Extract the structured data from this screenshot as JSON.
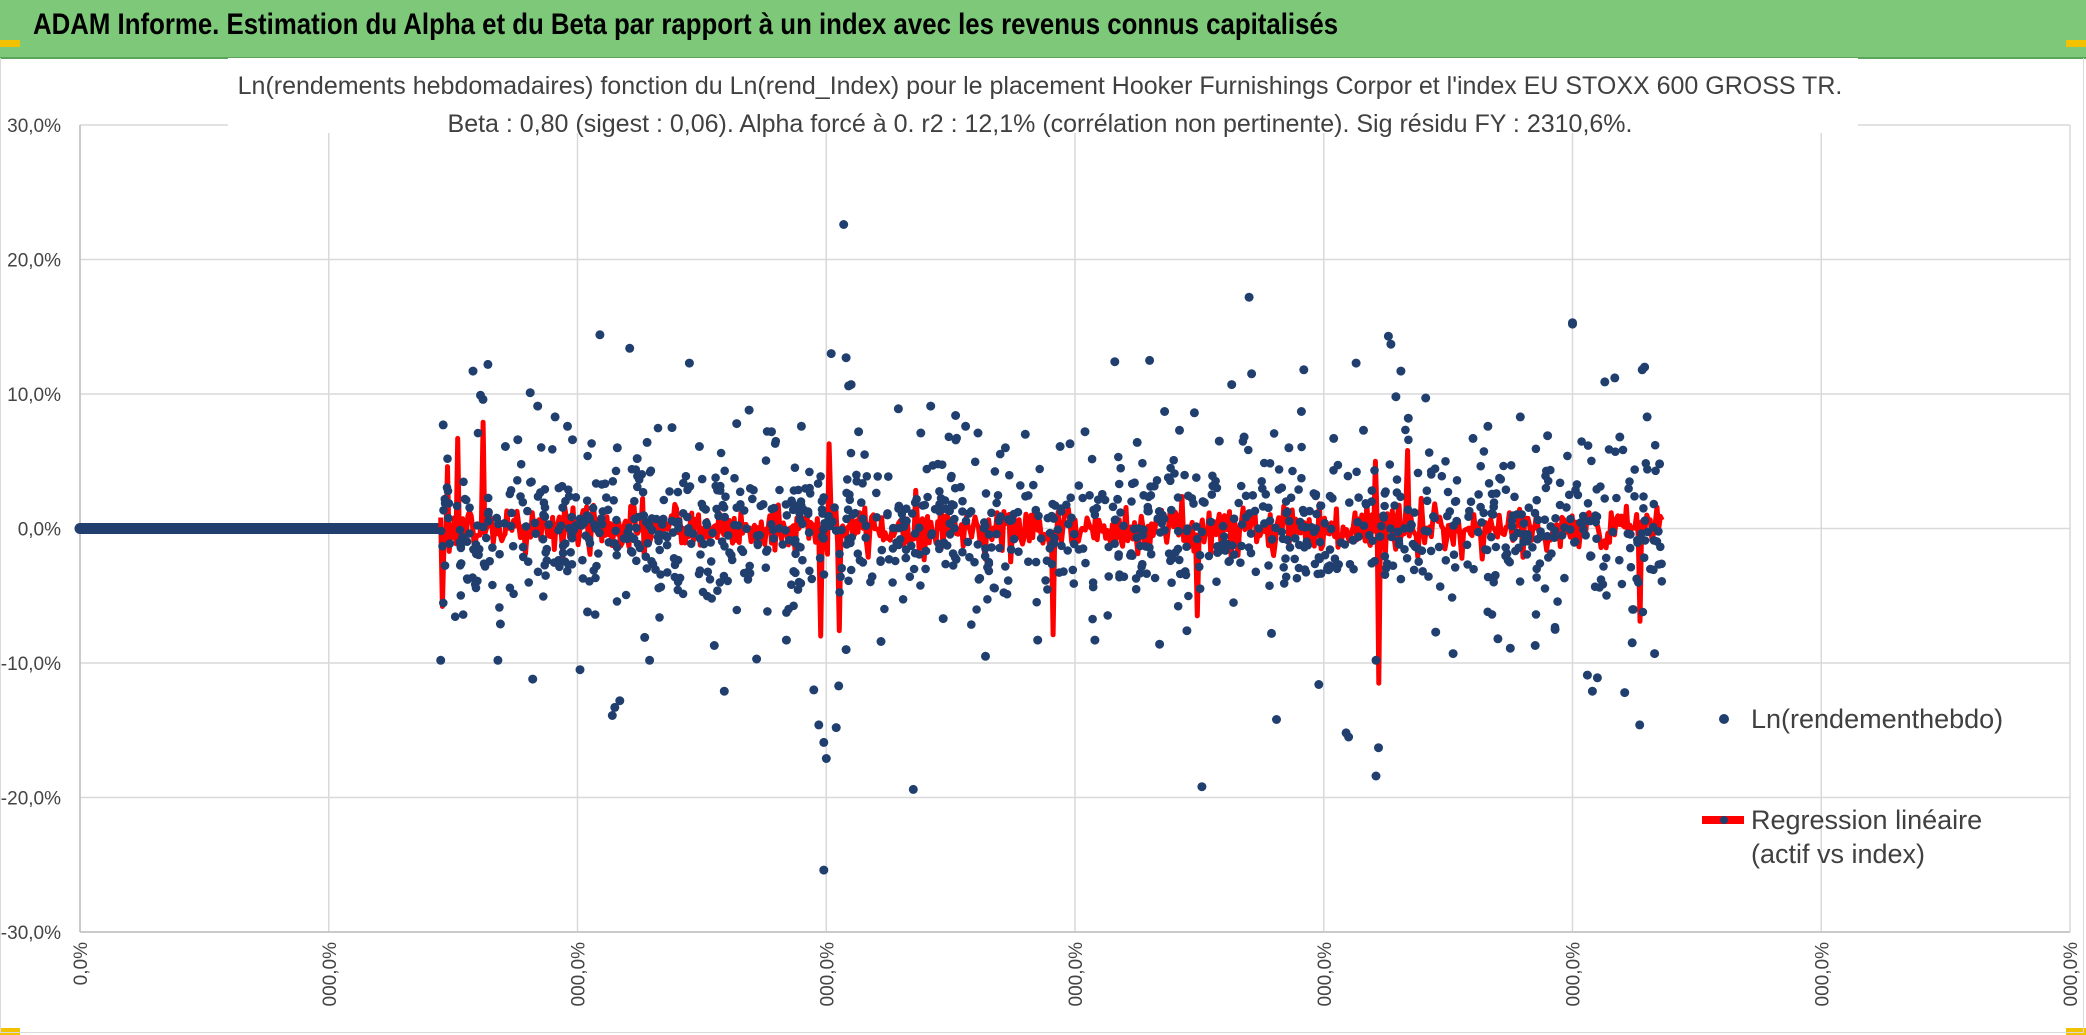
{
  "banner": {
    "title": "ADAM Informe. Estimation du Alpha et du Beta par rapport à un index avec les revenus connus capitalisés"
  },
  "colors": {
    "banner_bg": "#7ec87a",
    "points": "#203f6e",
    "regression": "#ff0000",
    "grid": "#d9d9d9",
    "corner_marks": "#f2c200"
  },
  "chart_data": {
    "type": "scatter",
    "title": "Ln(rendements hebdomadaires) fonction du Ln(rend_Index) pour le placement Hooker Furnishings Corpor et l'index EU STOXX 600 GROSS TR.",
    "subtitle": "Beta : 0,80 (sigest : 0,06). Alpha forcé à 0. r2 : 12,1% (corrélation non pertinente). Sig résidu FY : 2310,6%.",
    "ylim": [
      -0.3,
      0.3
    ],
    "y_ticks": [
      0.3,
      0.2,
      0.1,
      0.0,
      -0.1,
      -0.2,
      -0.3
    ],
    "y_tick_labels": [
      "30,0%",
      "20,0%",
      "10,0%",
      "0,0%",
      "-10,0%",
      "-20,0%",
      "-30,0%"
    ],
    "x_tick_labels": [
      "0,0%",
      "000,0%",
      "000,0%",
      "000,0%",
      "000,0%",
      "000,0%",
      "000,0%",
      "000,0%",
      "000,0%"
    ],
    "grid": true,
    "legend_position": "right",
    "series": [
      {
        "name": "Ln(rendementhebdo)",
        "type": "scatter",
        "color": "#203f6e",
        "zero_segment": {
          "x_start": 0.0,
          "x_end": 1.44,
          "y": 0.0
        },
        "points": [
          {
            "x": 1.45,
            "y": -0.098
          },
          {
            "x": 1.46,
            "y": 0.077
          },
          {
            "x": 1.58,
            "y": 0.117
          },
          {
            "x": 1.64,
            "y": 0.122
          },
          {
            "x": 1.61,
            "y": 0.099
          },
          {
            "x": 1.62,
            "y": 0.096
          },
          {
            "x": 1.71,
            "y": 0.061
          },
          {
            "x": 1.76,
            "y": 0.066
          },
          {
            "x": 1.69,
            "y": -0.071
          },
          {
            "x": 1.68,
            "y": -0.098
          },
          {
            "x": 1.81,
            "y": 0.101
          },
          {
            "x": 1.84,
            "y": 0.091
          },
          {
            "x": 1.82,
            "y": -0.112
          },
          {
            "x": 1.91,
            "y": 0.083
          },
          {
            "x": 1.96,
            "y": 0.076
          },
          {
            "x": 1.98,
            "y": 0.066
          },
          {
            "x": 2.01,
            "y": -0.105
          },
          {
            "x": 2.04,
            "y": -0.062
          },
          {
            "x": 2.09,
            "y": 0.144
          },
          {
            "x": 2.14,
            "y": -0.139
          },
          {
            "x": 2.15,
            "y": -0.133
          },
          {
            "x": 2.17,
            "y": -0.128
          },
          {
            "x": 2.21,
            "y": 0.134
          },
          {
            "x": 2.16,
            "y": 0.06
          },
          {
            "x": 2.24,
            "y": 0.052
          },
          {
            "x": 2.27,
            "y": -0.081
          },
          {
            "x": 2.29,
            "y": -0.098
          },
          {
            "x": 2.28,
            "y": 0.064
          },
          {
            "x": 2.38,
            "y": 0.075
          },
          {
            "x": 2.45,
            "y": 0.123
          },
          {
            "x": 2.49,
            "y": 0.061
          },
          {
            "x": 2.55,
            "y": -0.087
          },
          {
            "x": 2.59,
            "y": -0.121
          },
          {
            "x": 2.64,
            "y": 0.078
          },
          {
            "x": 2.69,
            "y": 0.088
          },
          {
            "x": 2.72,
            "y": -0.097
          },
          {
            "x": 2.78,
            "y": 0.072
          },
          {
            "x": 2.84,
            "y": -0.083
          },
          {
            "x": 2.9,
            "y": 0.076
          },
          {
            "x": 2.95,
            "y": -0.12
          },
          {
            "x": 2.97,
            "y": -0.146
          },
          {
            "x": 2.99,
            "y": -0.159
          },
          {
            "x": 3.0,
            "y": -0.171
          },
          {
            "x": 3.02,
            "y": 0.13
          },
          {
            "x": 3.04,
            "y": -0.148
          },
          {
            "x": 3.05,
            "y": -0.117
          },
          {
            "x": 3.07,
            "y": 0.226
          },
          {
            "x": 3.08,
            "y": 0.127
          },
          {
            "x": 3.09,
            "y": 0.106
          },
          {
            "x": 3.1,
            "y": 0.107
          },
          {
            "x": 2.99,
            "y": -0.254
          },
          {
            "x": 3.08,
            "y": -0.09
          },
          {
            "x": 3.13,
            "y": 0.072
          },
          {
            "x": 3.22,
            "y": -0.084
          },
          {
            "x": 3.29,
            "y": 0.089
          },
          {
            "x": 3.35,
            "y": -0.194
          },
          {
            "x": 3.38,
            "y": 0.071
          },
          {
            "x": 3.42,
            "y": 0.091
          },
          {
            "x": 3.47,
            "y": -0.067
          },
          {
            "x": 3.52,
            "y": 0.084
          },
          {
            "x": 3.56,
            "y": 0.076
          },
          {
            "x": 3.61,
            "y": 0.071
          },
          {
            "x": 3.64,
            "y": -0.095
          },
          {
            "x": 3.72,
            "y": 0.06
          },
          {
            "x": 3.8,
            "y": 0.07
          },
          {
            "x": 3.85,
            "y": -0.083
          },
          {
            "x": 3.94,
            "y": 0.061
          },
          {
            "x": 3.98,
            "y": 0.063
          },
          {
            "x": 4.04,
            "y": 0.072
          },
          {
            "x": 4.08,
            "y": -0.083
          },
          {
            "x": 4.16,
            "y": 0.124
          },
          {
            "x": 4.25,
            "y": 0.064
          },
          {
            "x": 4.3,
            "y": 0.125
          },
          {
            "x": 4.34,
            "y": -0.086
          },
          {
            "x": 4.36,
            "y": 0.087
          },
          {
            "x": 4.42,
            "y": 0.073
          },
          {
            "x": 4.45,
            "y": -0.076
          },
          {
            "x": 4.48,
            "y": 0.086
          },
          {
            "x": 4.51,
            "y": -0.192
          },
          {
            "x": 4.58,
            "y": 0.065
          },
          {
            "x": 4.63,
            "y": 0.107
          },
          {
            "x": 4.68,
            "y": 0.068
          },
          {
            "x": 4.7,
            "y": 0.172
          },
          {
            "x": 4.71,
            "y": 0.115
          },
          {
            "x": 4.79,
            "y": -0.078
          },
          {
            "x": 4.81,
            "y": -0.142
          },
          {
            "x": 4.86,
            "y": 0.06
          },
          {
            "x": 4.91,
            "y": 0.087
          },
          {
            "x": 4.92,
            "y": 0.118
          },
          {
            "x": 4.98,
            "y": -0.116
          },
          {
            "x": 5.04,
            "y": 0.067
          },
          {
            "x": 5.09,
            "y": -0.152
          },
          {
            "x": 5.1,
            "y": -0.155
          },
          {
            "x": 5.13,
            "y": 0.123
          },
          {
            "x": 5.16,
            "y": 0.073
          },
          {
            "x": 5.21,
            "y": -0.098
          },
          {
            "x": 5.22,
            "y": -0.163
          },
          {
            "x": 5.21,
            "y": -0.184
          },
          {
            "x": 5.26,
            "y": 0.143
          },
          {
            "x": 5.27,
            "y": 0.137
          },
          {
            "x": 5.31,
            "y": 0.117
          },
          {
            "x": 5.29,
            "y": 0.098
          },
          {
            "x": 5.34,
            "y": 0.082
          },
          {
            "x": 5.41,
            "y": 0.097
          },
          {
            "x": 5.45,
            "y": -0.077
          },
          {
            "x": 5.52,
            "y": -0.093
          },
          {
            "x": 5.6,
            "y": 0.067
          },
          {
            "x": 5.66,
            "y": 0.076
          },
          {
            "x": 5.7,
            "y": -0.082
          },
          {
            "x": 5.75,
            "y": -0.089
          },
          {
            "x": 5.79,
            "y": 0.083
          },
          {
            "x": 5.85,
            "y": -0.087
          },
          {
            "x": 5.9,
            "y": 0.069
          },
          {
            "x": 5.93,
            "y": -0.075
          },
          {
            "x": 6.0,
            "y": 0.153
          },
          {
            "x": 6.0,
            "y": 0.152
          },
          {
            "x": 6.06,
            "y": -0.109
          },
          {
            "x": 6.08,
            "y": -0.121
          },
          {
            "x": 6.1,
            "y": -0.111
          },
          {
            "x": 6.13,
            "y": 0.109
          },
          {
            "x": 6.17,
            "y": 0.112
          },
          {
            "x": 6.19,
            "y": 0.068
          },
          {
            "x": 6.21,
            "y": -0.122
          },
          {
            "x": 6.24,
            "y": -0.085
          },
          {
            "x": 6.27,
            "y": -0.146
          },
          {
            "x": 6.28,
            "y": 0.118
          },
          {
            "x": 6.29,
            "y": 0.12
          },
          {
            "x": 6.3,
            "y": 0.083
          },
          {
            "x": 6.33,
            "y": -0.093
          },
          {
            "x": 6.35,
            "y": 0.048
          }
        ]
      },
      {
        "name": "Regression linéaire (actif vs index)",
        "legend_lines": [
          "Regression linéaire",
          "(actif vs index)"
        ],
        "type": "line",
        "color": "#ff0000",
        "beta": 0.8,
        "x_range": [
          1.45,
          6.36
        ],
        "notable_spikes": [
          {
            "x": 1.46,
            "y": -0.058
          },
          {
            "x": 1.48,
            "y": 0.046
          },
          {
            "x": 1.52,
            "y": 0.067
          },
          {
            "x": 1.62,
            "y": 0.079
          },
          {
            "x": 2.98,
            "y": -0.08
          },
          {
            "x": 3.01,
            "y": 0.063
          },
          {
            "x": 3.05,
            "y": -0.076
          },
          {
            "x": 3.91,
            "y": -0.079
          },
          {
            "x": 4.49,
            "y": -0.065
          },
          {
            "x": 5.22,
            "y": -0.115
          },
          {
            "x": 5.21,
            "y": 0.05
          },
          {
            "x": 5.34,
            "y": 0.058
          },
          {
            "x": 6.27,
            "y": -0.069
          }
        ]
      }
    ]
  }
}
